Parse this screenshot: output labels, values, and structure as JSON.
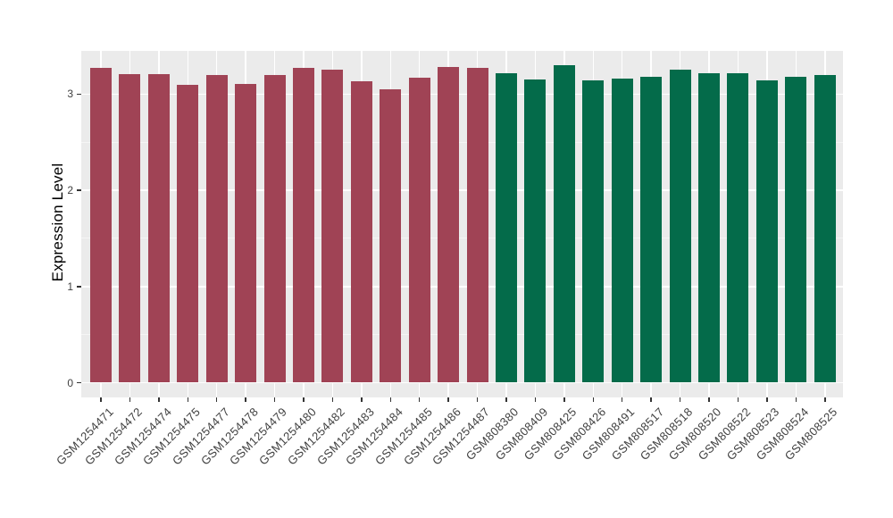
{
  "figure": {
    "background": "#FFFFFF",
    "panel_bg": "#EBEBEB",
    "grid_major_color": "#FFFFFF",
    "grid_minor_color": "#F5F5F5",
    "tick_mark_color": "#333333",
    "tick_label_color": "#404040",
    "axis_title_color": "#000000"
  },
  "chart_data": {
    "type": "bar",
    "title": "",
    "xlabel": "",
    "ylabel": "Expression Level",
    "yticks": [
      0,
      1,
      2,
      3
    ],
    "yticks_minor": [
      0.5,
      1.5,
      2.5
    ],
    "ylim": [
      -0.16,
      3.45
    ],
    "grid": true,
    "legend": false,
    "series": [
      {
        "name": "maroon-group",
        "color": "#A04355",
        "categories": [
          "GSM1254471",
          "GSM1254472",
          "GSM1254474",
          "GSM1254475",
          "GSM1254477",
          "GSM1254478",
          "GSM1254479",
          "GSM1254480",
          "GSM1254482",
          "GSM1254483",
          "GSM1254484",
          "GSM1254485",
          "GSM1254486",
          "GSM1254487"
        ],
        "values": [
          3.27,
          3.21,
          3.21,
          3.1,
          3.2,
          3.11,
          3.2,
          3.27,
          3.25,
          3.13,
          3.05,
          3.17,
          3.28,
          3.27
        ]
      },
      {
        "name": "green-group",
        "color": "#046B4A",
        "categories": [
          "GSM808380",
          "GSM808409",
          "GSM808425",
          "GSM808426",
          "GSM808491",
          "GSM808517",
          "GSM808518",
          "GSM808520",
          "GSM808522",
          "GSM808523",
          "GSM808524",
          "GSM808525"
        ],
        "values": [
          3.22,
          3.15,
          3.3,
          3.14,
          3.16,
          3.18,
          3.25,
          3.22,
          3.22,
          3.14,
          3.18,
          3.2
        ]
      }
    ]
  }
}
